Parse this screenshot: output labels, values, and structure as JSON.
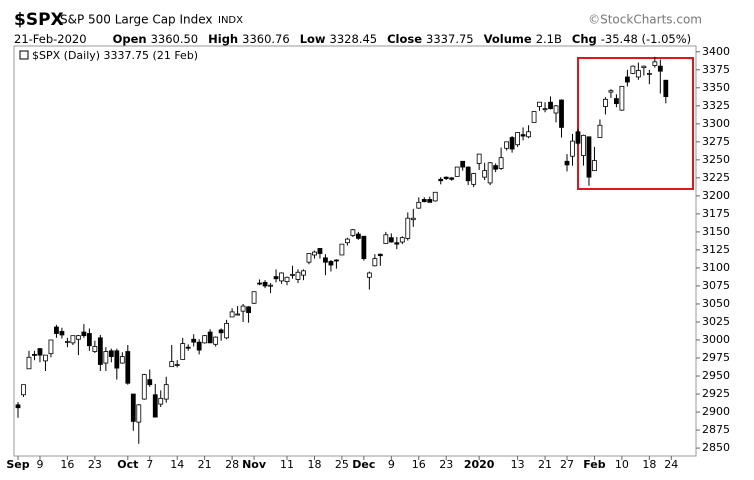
{
  "header": {
    "symbol": "$SPX",
    "name": "S&P 500 Large Cap Index",
    "exchange": "INDX",
    "source": "©StockCharts.com",
    "date": "21-Feb-2020",
    "fields": [
      {
        "label": "Open",
        "value": "3360.50"
      },
      {
        "label": "High",
        "value": "3360.76"
      },
      {
        "label": "Low",
        "value": "3328.45"
      },
      {
        "label": "Close",
        "value": "3337.75"
      },
      {
        "label": "Volume",
        "value": "2.1B"
      },
      {
        "label": "Chg",
        "value": "-35.48 (-1.05%)"
      }
    ]
  },
  "chart_data": {
    "type": "candlestick",
    "categories": [
      "Sep",
      null,
      null,
      null,
      "9",
      null,
      null,
      null,
      null,
      "16",
      null,
      null,
      null,
      null,
      "23",
      null,
      null,
      null,
      null,
      null,
      "Oct",
      null,
      null,
      null,
      "7",
      null,
      null,
      null,
      null,
      "14",
      null,
      null,
      null,
      null,
      "21",
      null,
      null,
      null,
      null,
      "28",
      null,
      null,
      null,
      "Nov",
      null,
      null,
      null,
      null,
      null,
      "11",
      null,
      null,
      null,
      null,
      "18",
      null,
      null,
      null,
      null,
      "25",
      null,
      null,
      null,
      "Dec",
      null,
      null,
      null,
      null,
      "9",
      null,
      null,
      null,
      null,
      "16",
      null,
      null,
      null,
      null,
      "23",
      null,
      null,
      null,
      null,
      null,
      "2020",
      null,
      null,
      null,
      null,
      null,
      null,
      "13",
      null,
      null,
      null,
      null,
      "21",
      null,
      null,
      null,
      "27",
      null,
      null,
      null,
      null,
      "Feb",
      null,
      null,
      null,
      null,
      "10",
      null,
      null,
      null,
      null,
      "18",
      null,
      null,
      null,
      "24",
      null
    ],
    "series": [
      {
        "name": "$SPX (Daily) 3337.75 (21 Feb)",
        "color": "#000000",
        "open": [
          2910,
          2924,
          2960,
          2980,
          2988,
          2971,
          2981,
          3018,
          3012,
          2997,
          2996,
          3001,
          3011,
          3009,
          2984,
          3003,
          2968,
          2985,
          2985,
          2968,
          2984,
          2925,
          2886,
          2918,
          2945,
          2924,
          2911,
          2918,
          2963,
          2965,
          2973,
          2990,
          3001,
          2997,
          2996,
          3011,
          2994,
          3014,
          3003,
          3032,
          3036,
          3040,
          3046,
          3051,
          3079,
          3080,
          3076,
          3088,
          3082,
          3081,
          3090,
          3084,
          3090,
          3108,
          3118,
          3127,
          3114,
          3109,
          3111,
          3118,
          3135,
          3145,
          3147,
          3144,
          3087,
          3103,
          3119,
          3134,
          3142,
          3135,
          3136,
          3141,
          3167,
          3183,
          3195,
          3195,
          3193,
          3223,
          3226,
          3225,
          3227,
          3248,
          3240,
          3216,
          3245,
          3226,
          3218,
          3242,
          3238,
          3266,
          3281,
          3271,
          3285,
          3282,
          3302,
          3324,
          3321,
          3330,
          3315,
          3333,
          3248,
          3255,
          3289,
          3256,
          3282,
          3235,
          3281,
          3324,
          3344,
          3335,
          3319,
          3365,
          3370,
          3365,
          3378,
          3369,
          3381,
          3380,
          3360.5,
          null,
          null
        ],
        "high": [
          2914,
          2938,
          2985,
          2985,
          2989,
          2979,
          3000,
          3021,
          3017,
          3003,
          3006,
          3007,
          3022,
          3016,
          2999,
          3007,
          2990,
          2988,
          2988,
          2983,
          2993,
          2925,
          2911,
          2953,
          2959,
          2939,
          2930,
          2949,
          2993,
          2972,
          3003,
          2994,
          3008,
          3001,
          3007,
          3015,
          3005,
          3016,
          3028,
          3044,
          3047,
          3050,
          3047,
          3067,
          3084,
          3083,
          3079,
          3098,
          3094,
          3088,
          3103,
          3098,
          3098,
          3120,
          3124,
          3127,
          3119,
          3111,
          3112,
          3133,
          3142,
          3154,
          3150,
          3144,
          3095,
          3119,
          3120,
          3150,
          3148,
          3143,
          3144,
          3177,
          3182,
          3198,
          3198,
          3199,
          3205,
          3226,
          3227,
          3226,
          3240,
          3248,
          3241,
          3232,
          3258,
          3246,
          3247,
          3245,
          3267,
          3275,
          3283,
          3288,
          3295,
          3298,
          3317,
          3330,
          3330,
          3338,
          3326,
          3334,
          3258,
          3286,
          3293,
          3285,
          3282,
          3268,
          3306,
          3337,
          3348,
          3341,
          3352,
          3375,
          3381,
          3385,
          3381,
          3375,
          3393,
          3389,
          3360.76,
          null,
          null
        ],
        "low": [
          2892,
          2921,
          2960,
          2972,
          2969,
          2957,
          2976,
          3003,
          3002,
          2990,
          2993,
          2979,
          3003,
          2985,
          2982,
          2957,
          2957,
          2969,
          2945,
          2967,
          2938,
          2874,
          2856,
          2917,
          2935,
          2893,
          2907,
          2913,
          2963,
          2962,
          2973,
          2985,
          2991,
          2980,
          2995,
          2996,
          2991,
          2999,
          3001,
          3032,
          3034,
          3025,
          3024,
          3050,
          3076,
          3072,
          3065,
          3080,
          3078,
          3076,
          3085,
          3079,
          3083,
          3105,
          3113,
          3113,
          3090,
          3095,
          3099,
          3118,
          3131,
          3143,
          3139,
          3110,
          3070,
          3102,
          3103,
          3134,
          3135,
          3126,
          3133,
          3138,
          3157,
          3182,
          3191,
          3191,
          3192,
          3216,
          3222,
          3221,
          3227,
          3235,
          3215,
          3212,
          3236,
          3222,
          3215,
          3233,
          3236,
          3263,
          3260,
          3268,
          3277,
          3280,
          3302,
          3318,
          3316,
          3320,
          3302,
          3281,
          3234,
          3242,
          3271,
          3242,
          3214,
          3235,
          3281,
          3313,
          3336,
          3323,
          3318,
          3352,
          3369,
          3361,
          3367,
          3355,
          3378,
          3342,
          3328.45,
          null,
          null
        ],
        "close": [
          2906,
          2938,
          2976,
          2979,
          2979,
          2979,
          3000,
          3009,
          3007,
          2998,
          3006,
          3006,
          3006,
          2992,
          2991,
          2966,
          2984,
          2977,
          2961,
          2977,
          2940,
          2887,
          2910,
          2952,
          2938,
          2893,
          2919,
          2938,
          2970,
          2966,
          2995,
          2989,
          2997,
          2986,
          3006,
          2996,
          3004,
          3010,
          3023,
          3039,
          3036,
          3047,
          3038,
          3067,
          3078,
          3075,
          3076,
          3085,
          3093,
          3087,
          3091,
          3094,
          3096,
          3120,
          3122,
          3120,
          3108,
          3104,
          3110,
          3133,
          3140,
          3153,
          3141,
          3113,
          3093,
          3113,
          3117,
          3146,
          3136,
          3133,
          3142,
          3169,
          3169,
          3191,
          3192,
          3191,
          3205,
          3221,
          3224,
          3223,
          3240,
          3240,
          3221,
          3231,
          3258,
          3235,
          3246,
          3237,
          3253,
          3275,
          3265,
          3288,
          3283,
          3289,
          3317,
          3330,
          3321,
          3321,
          3325,
          3295,
          3243,
          3276,
          3273,
          3284,
          3226,
          3249,
          3298,
          3334,
          3346,
          3328,
          3352,
          3358,
          3380,
          3374,
          3380,
          3370,
          3386,
          3373,
          3337.75,
          null,
          null
        ]
      }
    ],
    "ylim": [
      2839,
      3408
    ],
    "yticks": [
      2850,
      2875,
      2900,
      2925,
      2950,
      2975,
      3000,
      3025,
      3050,
      3075,
      3100,
      3125,
      3150,
      3175,
      3200,
      3225,
      3250,
      3275,
      3300,
      3325,
      3350,
      3375,
      3400
    ],
    "grid": false
  }
}
